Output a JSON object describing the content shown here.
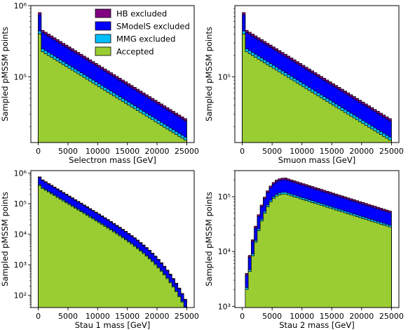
{
  "chart_data": [
    {
      "type": "area",
      "stacked": true,
      "xlabel": "Selectron mass [GeV]",
      "ylabel": "Sampled pMSSM points",
      "xlim": [
        -1250,
        26250
      ],
      "ylim": [
        12000,
        1000000
      ],
      "yscale": "log",
      "xticks": [
        0,
        5000,
        10000,
        15000,
        20000,
        25000
      ],
      "yticks": [
        {
          "value": 100000,
          "label": "10⁵"
        },
        {
          "value": 1000000,
          "label": "10⁶"
        }
      ],
      "profile": {
        "bin_width": 500,
        "x_start": 0,
        "x_end": 25000,
        "first_bin_total": 800000,
        "peak_x": 500,
        "peak_total": 450000,
        "end_total": 26000,
        "log_decay": "linear"
      },
      "component_fractions": {
        "HB excluded": 0.07,
        "SModelS excluded": 0.38,
        "MMG excluded": 0.05,
        "Accepted": 0.5
      },
      "legend": {
        "position": "upper-center",
        "entries": [
          "HB excluded",
          "SModelS excluded",
          "MMG excluded",
          "Accepted"
        ]
      }
    },
    {
      "type": "area",
      "stacked": true,
      "xlabel": "Smuon mass [GeV]",
      "ylabel": "Sampled pMSSM points",
      "xlim": [
        -1250,
        26250
      ],
      "ylim": [
        12000,
        1000000
      ],
      "yscale": "log",
      "xticks": [
        0,
        5000,
        10000,
        15000,
        20000,
        25000
      ],
      "yticks": [
        {
          "value": 100000,
          "label": "10⁵"
        }
      ],
      "profile": {
        "bin_width": 500,
        "x_start": 0,
        "x_end": 25000,
        "first_bin_total": 800000,
        "peak_x": 500,
        "peak_total": 450000,
        "end_total": 26000,
        "log_decay": "linear"
      },
      "component_fractions": {
        "HB excluded": 0.07,
        "SModelS excluded": 0.38,
        "MMG excluded": 0.05,
        "Accepted": 0.5
      }
    },
    {
      "type": "area",
      "stacked": true,
      "xlabel": "Stau 1 mass [GeV]",
      "ylabel": "Sampled pMSSM points",
      "xlim": [
        -1250,
        26250
      ],
      "ylim": [
        40,
        1200000
      ],
      "yscale": "log",
      "xticks": [
        0,
        5000,
        10000,
        15000,
        20000,
        25000
      ],
      "yticks": [
        {
          "value": 100,
          "label": "10²"
        },
        {
          "value": 1000,
          "label": "10³"
        },
        {
          "value": 10000,
          "label": "10⁴"
        },
        {
          "value": 100000,
          "label": "10⁵"
        },
        {
          "value": 1000000,
          "label": "10⁶"
        }
      ],
      "profile": {
        "bin_width": 500,
        "x_start": 0,
        "x_end": 25000,
        "first_bin_total": 750000,
        "peak_x": 500,
        "peak_total": 600000,
        "end_total": 75,
        "log_decay": "accelerating"
      },
      "component_fractions": {
        "HB excluded": 0.06,
        "SModelS excluded": 0.38,
        "MMG excluded": 0.04,
        "Accepted": 0.52
      }
    },
    {
      "type": "area",
      "stacked": true,
      "xlabel": "Stau 2 mass [GeV]",
      "ylabel": "Sampled pMSSM points",
      "xlim": [
        -1250,
        26250
      ],
      "ylim": [
        950,
        300000
      ],
      "yscale": "log",
      "xticks": [
        0,
        5000,
        10000,
        15000,
        20000,
        25000
      ],
      "yticks": [
        {
          "value": 1000,
          "label": "10³"
        },
        {
          "value": 10000,
          "label": "10⁴"
        },
        {
          "value": 100000,
          "label": "10⁵"
        }
      ],
      "profile": {
        "bin_width": 500,
        "x_start": 500,
        "x_end": 25000,
        "first_bin_total": 4000,
        "peak_x": 7000,
        "peak_total": 220000,
        "end_total": 55000,
        "log_decay": "rise-then-fall"
      },
      "component_fractions": {
        "HB excluded": 0.07,
        "SModelS excluded": 0.38,
        "MMG excluded": 0.04,
        "Accepted": 0.51
      }
    }
  ],
  "colors": {
    "HB excluded": "#800080",
    "SModelS excluded": "#0000ff",
    "MMG excluded": "#00bfff",
    "Accepted": "#9acd32",
    "edge": "#000000"
  }
}
